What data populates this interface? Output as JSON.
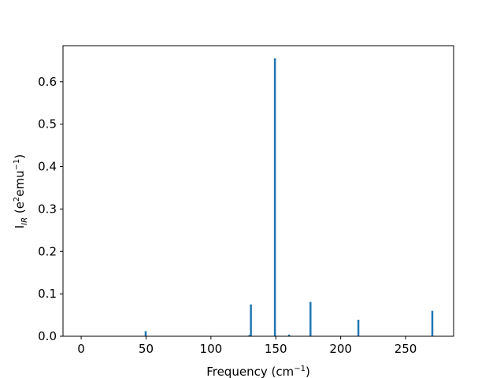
{
  "chart_data": {
    "type": "bar",
    "xlabel_base": "Frequency (cm",
    "xlabel_sup": "−1",
    "xlabel_end": ")",
    "ylabel_base": "I",
    "ylabel_sub": "IR",
    "ylabel_mid": " (e",
    "ylabel_sup1": "2",
    "ylabel_mid2": "emu",
    "ylabel_sup2": "−1",
    "ylabel_end": ")",
    "xlim": [
      -14,
      287
    ],
    "ylim": [
      0,
      0.685
    ],
    "xticks": [
      0,
      50,
      100,
      150,
      200,
      250
    ],
    "yticks": [
      0.0,
      0.1,
      0.2,
      0.3,
      0.4,
      0.5,
      0.6
    ],
    "ytick_labels": [
      "0.0",
      "0.1",
      "0.2",
      "0.3",
      "0.4",
      "0.5",
      "0.6"
    ],
    "bar_color": "#1f77b4",
    "bar_width": 1.5,
    "grid": false,
    "points": [
      {
        "x": 49.7,
        "y": 0.012
      },
      {
        "x": 129.7,
        "y": 0.003
      },
      {
        "x": 130.8,
        "y": 0.075
      },
      {
        "x": 149.3,
        "y": 0.655
      },
      {
        "x": 160.2,
        "y": 0.004
      },
      {
        "x": 176.7,
        "y": 0.081
      },
      {
        "x": 213.6,
        "y": 0.039
      },
      {
        "x": 270.6,
        "y": 0.06
      }
    ]
  }
}
